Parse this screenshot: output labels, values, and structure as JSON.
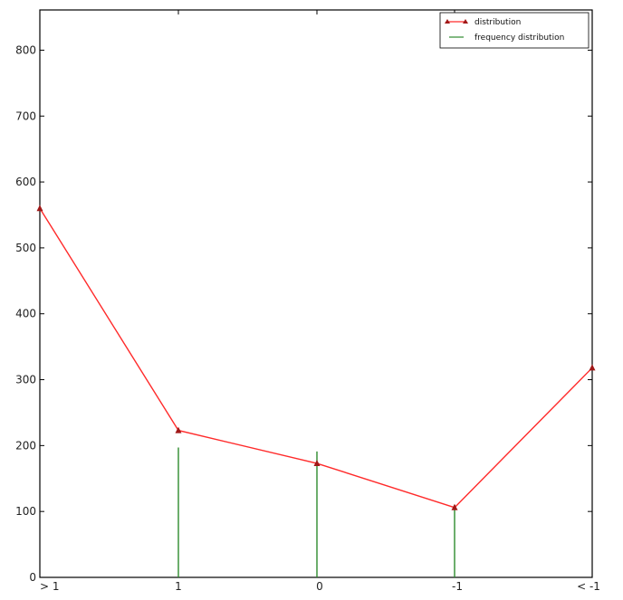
{
  "chart_data": {
    "type": "line",
    "categories": [
      "> 1",
      "1",
      "0",
      "-1",
      "< -1"
    ],
    "ylim": [
      0,
      860
    ],
    "yticks": [
      0,
      100,
      200,
      300,
      400,
      500,
      600,
      700,
      800
    ],
    "series": [
      {
        "name": "distribution",
        "kind": "line",
        "marker": "triangle",
        "values": [
          560,
          223,
          173,
          106,
          318
        ]
      },
      {
        "name": "frequency distribution",
        "kind": "stem",
        "values": [
          null,
          197,
          191,
          110,
          null
        ]
      }
    ],
    "legend_position": "top-right",
    "grid": false,
    "colors": {
      "distribution_line": "#ff2a2a",
      "distribution_marker": "#a01818",
      "frequency_line": "#2e8b2e",
      "axes": "#000000"
    }
  },
  "legend": {
    "items": [
      {
        "label": "distribution"
      },
      {
        "label": "frequency distribution"
      }
    ]
  }
}
